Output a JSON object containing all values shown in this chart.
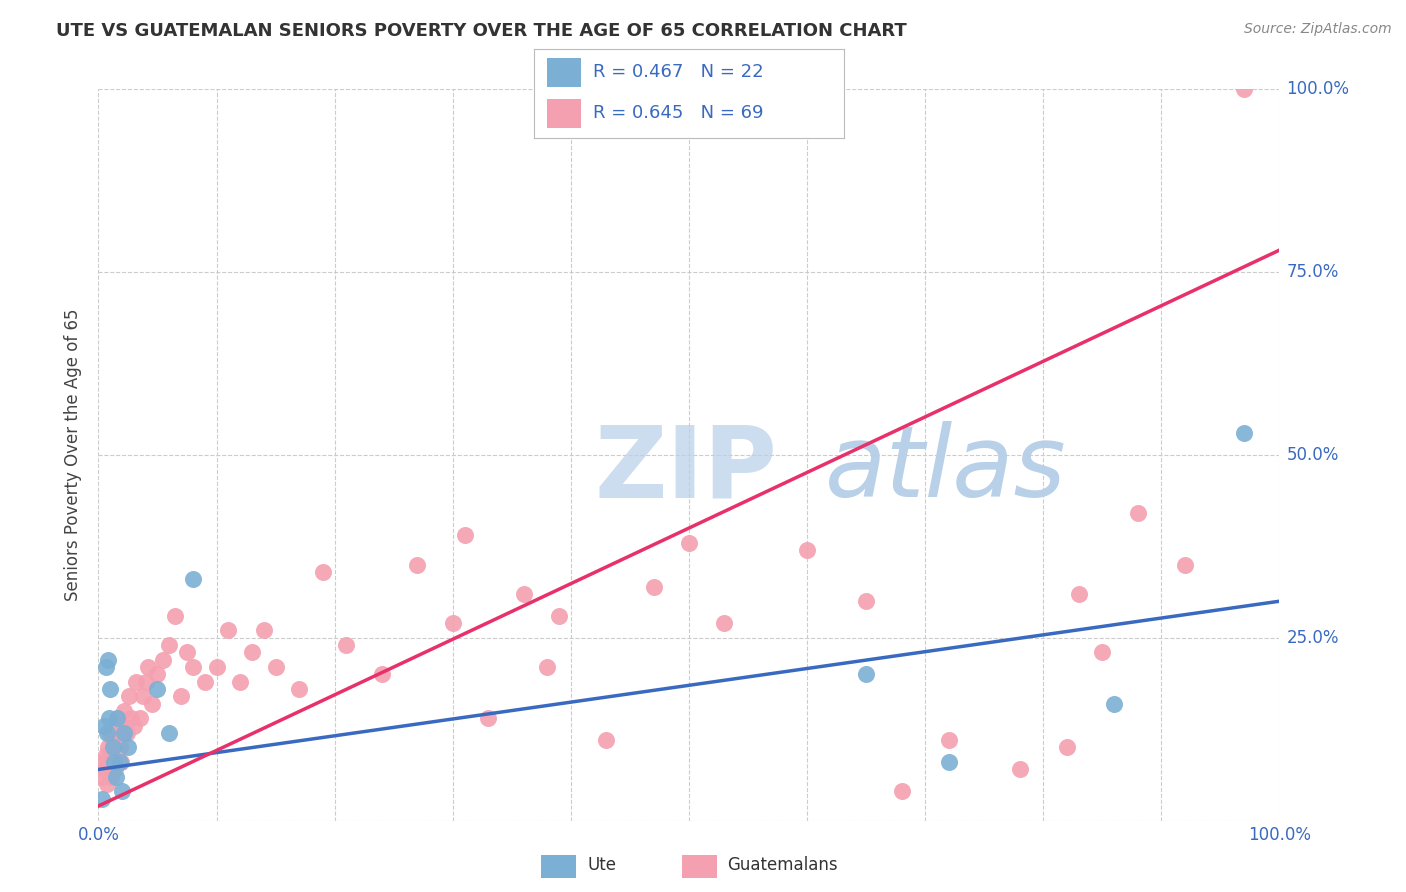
{
  "title": "UTE VS GUATEMALAN SENIORS POVERTY OVER THE AGE OF 65 CORRELATION CHART",
  "source": "Source: ZipAtlas.com",
  "ylabel": "Seniors Poverty Over the Age of 65",
  "xlim": [
    0.0,
    1.0
  ],
  "ylim": [
    0.0,
    1.0
  ],
  "xticks": [
    0.0,
    0.1,
    0.2,
    0.3,
    0.4,
    0.5,
    0.6,
    0.7,
    0.8,
    0.9,
    1.0
  ],
  "yticks": [
    0.0,
    0.25,
    0.5,
    0.75,
    1.0
  ],
  "xtick_labels": [
    "0.0%",
    "",
    "",
    "",
    "",
    "",
    "",
    "",
    "",
    "",
    "100.0%"
  ],
  "ytick_labels": [
    "",
    "25.0%",
    "50.0%",
    "75.0%",
    "100.0%"
  ],
  "grid_color": "#cccccc",
  "background_color": "#ffffff",
  "legend_r_ute": "R = 0.467",
  "legend_n_ute": "N = 22",
  "legend_r_guat": "R = 0.645",
  "legend_n_guat": "N = 69",
  "ute_color": "#7bafd4",
  "guatemalan_color": "#f4a0b0",
  "ute_line_color": "#3a6abf",
  "guatemalan_line_color": "#e8306a",
  "ute_scatter_x": [
    0.003,
    0.005,
    0.006,
    0.007,
    0.008,
    0.009,
    0.01,
    0.012,
    0.013,
    0.015,
    0.016,
    0.018,
    0.02,
    0.022,
    0.025,
    0.05,
    0.06,
    0.08,
    0.65,
    0.72,
    0.86,
    0.97
  ],
  "ute_scatter_y": [
    0.03,
    0.13,
    0.21,
    0.12,
    0.22,
    0.14,
    0.18,
    0.1,
    0.08,
    0.06,
    0.14,
    0.08,
    0.04,
    0.12,
    0.1,
    0.18,
    0.12,
    0.33,
    0.2,
    0.08,
    0.16,
    0.53
  ],
  "guatemalan_scatter_x": [
    0.003,
    0.004,
    0.005,
    0.006,
    0.007,
    0.008,
    0.009,
    0.01,
    0.011,
    0.012,
    0.013,
    0.014,
    0.015,
    0.016,
    0.017,
    0.018,
    0.019,
    0.02,
    0.022,
    0.024,
    0.026,
    0.028,
    0.03,
    0.032,
    0.035,
    0.038,
    0.04,
    0.042,
    0.045,
    0.05,
    0.055,
    0.06,
    0.065,
    0.07,
    0.075,
    0.08,
    0.09,
    0.1,
    0.11,
    0.12,
    0.13,
    0.14,
    0.15,
    0.17,
    0.19,
    0.21,
    0.24,
    0.27,
    0.3,
    0.31,
    0.33,
    0.36,
    0.38,
    0.39,
    0.43,
    0.47,
    0.5,
    0.53,
    0.6,
    0.65,
    0.68,
    0.72,
    0.78,
    0.82,
    0.83,
    0.85,
    0.88,
    0.92,
    0.97
  ],
  "guatemalan_scatter_y": [
    0.06,
    0.08,
    0.07,
    0.09,
    0.05,
    0.1,
    0.08,
    0.12,
    0.06,
    0.11,
    0.08,
    0.07,
    0.12,
    0.09,
    0.14,
    0.1,
    0.08,
    0.13,
    0.15,
    0.12,
    0.17,
    0.14,
    0.13,
    0.19,
    0.14,
    0.17,
    0.19,
    0.21,
    0.16,
    0.2,
    0.22,
    0.24,
    0.28,
    0.17,
    0.23,
    0.21,
    0.19,
    0.21,
    0.26,
    0.19,
    0.23,
    0.26,
    0.21,
    0.18,
    0.34,
    0.24,
    0.2,
    0.35,
    0.27,
    0.39,
    0.14,
    0.31,
    0.21,
    0.28,
    0.11,
    0.32,
    0.38,
    0.27,
    0.37,
    0.3,
    0.04,
    0.11,
    0.07,
    0.1,
    0.31,
    0.23,
    0.42,
    0.35,
    1.0
  ],
  "ute_line_x": [
    0.0,
    1.0
  ],
  "ute_line_y": [
    0.07,
    0.3
  ],
  "guatemalan_line_x": [
    0.0,
    1.0
  ],
  "guatemalan_line_y": [
    0.02,
    0.78
  ]
}
